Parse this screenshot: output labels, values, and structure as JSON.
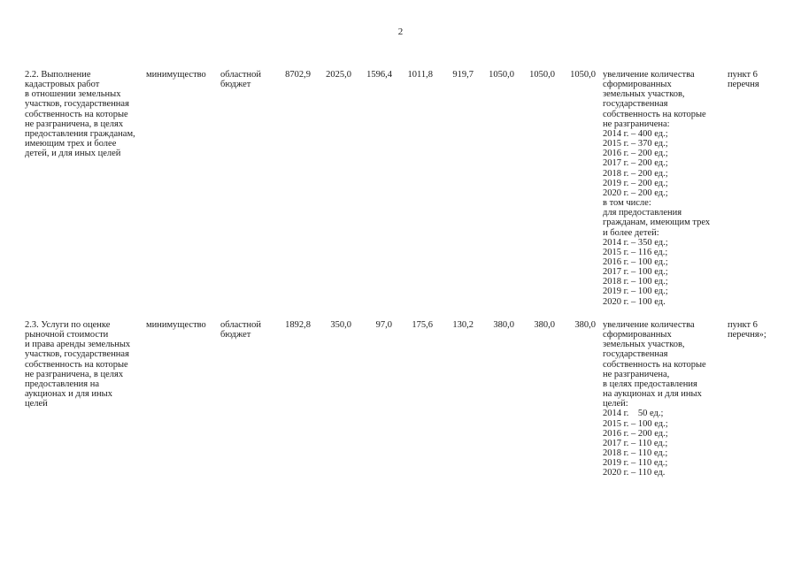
{
  "page": {
    "number": "2"
  },
  "colors": {
    "background": "#ffffff",
    "text": "#1c1c1c"
  },
  "table": {
    "rows": [
      {
        "activity": "2.2. Выполнение\nкадастровых работ\nв отношении земельных\nучастков, государственная\nсобственность на которые\nне разграничена, в целях\nпредоставления гражданам,\nимеющим трех и более\nдетей, и для иных целей",
        "executor": "минимущество",
        "funding_source": "областной\nбюджет",
        "amounts": [
          "8702,9",
          "2025,0",
          "1596,4",
          "1011,8",
          "919,7",
          "1050,0",
          "1050,0",
          "1050,0"
        ],
        "expected_result": "увеличение количества\nсформированных\nземельных участков,\nгосударственная\nсобственность на которые\nне разграничена:\n2014 г. – 400 ед.;\n2015 г. – 370 ед.;\n2016 г. – 200 ед.;\n2017 г. – 200 ед.;\n2018 г. – 200 ед.;\n2019 г. – 200 ед.;\n2020 г. – 200 ед.;\nв том числе:\nдля предоставления\nгражданам, имеющим трех\nи более детей:\n2014 г. – 350 ед.;\n2015 г. – 116 ед.;\n2016 г. – 100 ед.;\n2017 г. – 100 ед.;\n2018 г. – 100 ед.;\n2019 г. – 100 ед.;\n2020 г. – 100 ед.",
        "reference": "пункт 6\nперечня"
      },
      {
        "activity": "2.3. Услуги по оценке\nрыночной стоимости\nи права аренды земельных\nучастков, государственная\nсобственность на которые\nне разграничена, в целях\nпредоставления на\nаукционах и для иных\nцелей",
        "executor": "минимущество",
        "funding_source": "областной\nбюджет",
        "amounts": [
          "1892,8",
          "350,0",
          "97,0",
          "175,6",
          "130,2",
          "380,0",
          "380,0",
          "380,0"
        ],
        "expected_result": "увеличение количества\nсформированных\nземельных участков,\nгосударственная\nсобственность на которые\nне разграничена,\nв целях предоставления\nна аукционах и для иных\nцелей:\n2014 г.    50 ед.;\n2015 г. – 100 ед.;\n2016 г. – 200 ед.;\n2017 г. – 110 ед.;\n2018 г. – 110 ед.;\n2019 г. – 110 ед.;\n2020 г. – 110 ед.",
        "reference": "пункт 6\nперечня»;"
      }
    ]
  }
}
